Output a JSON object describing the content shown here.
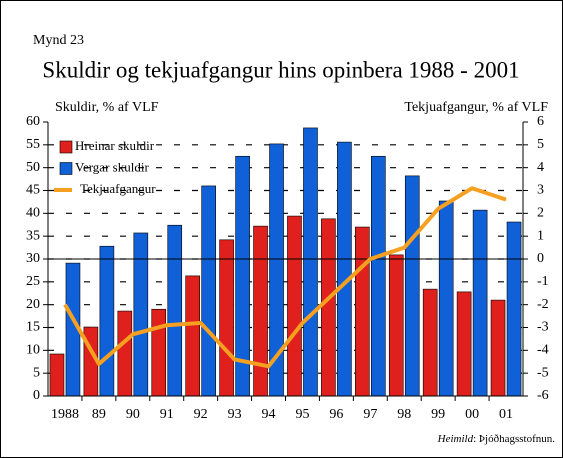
{
  "chart_data": {
    "type": "bar",
    "figure_label": "Mynd 23",
    "title": "Skuldir og tekjuafgangur hins opinbera 1988 - 2001",
    "y_label": "Skuldir, % af VLF",
    "y2_label": "Tekjuafgangur, % af VLF",
    "categories": [
      "1988",
      "89",
      "90",
      "91",
      "92",
      "93",
      "94",
      "95",
      "96",
      "97",
      "98",
      "99",
      "00",
      "01"
    ],
    "series": [
      {
        "name": "Hreinar skuldir",
        "color": "#e0201c",
        "type": "bar",
        "values": [
          9.2,
          15.1,
          18.6,
          19.0,
          26.3,
          34.2,
          37.2,
          39.4,
          38.8,
          37.0,
          30.9,
          23.4,
          22.8,
          21.0
        ]
      },
      {
        "name": "Vergar skuldir",
        "color": "#1060d8",
        "type": "bar",
        "values": [
          29.1,
          32.8,
          35.7,
          37.4,
          46.0,
          52.5,
          55.2,
          58.7,
          55.6,
          52.5,
          48.2,
          42.7,
          40.7,
          38.1
        ]
      },
      {
        "name": "Tekjuafgangur",
        "color": "#f5a020",
        "type": "line",
        "axis": "y2",
        "values": [
          -2.0,
          -4.6,
          -3.3,
          -2.9,
          -2.8,
          -4.4,
          -4.7,
          -2.8,
          -1.4,
          0.0,
          0.5,
          2.2,
          3.1,
          2.6
        ]
      }
    ],
    "ylim": [
      0,
      60
    ],
    "yticks": [
      0,
      5,
      10,
      15,
      20,
      25,
      30,
      35,
      40,
      45,
      50,
      55,
      60
    ],
    "y2lim": [
      -6,
      6
    ],
    "y2ticks": [
      -6,
      -5,
      -4,
      -3,
      -2,
      -1,
      0,
      1,
      2,
      3,
      4,
      5,
      6
    ],
    "grid": true,
    "legend": "upper left",
    "source_label": "Heimild",
    "source_text": ": Þjóðhagsstofnun."
  }
}
